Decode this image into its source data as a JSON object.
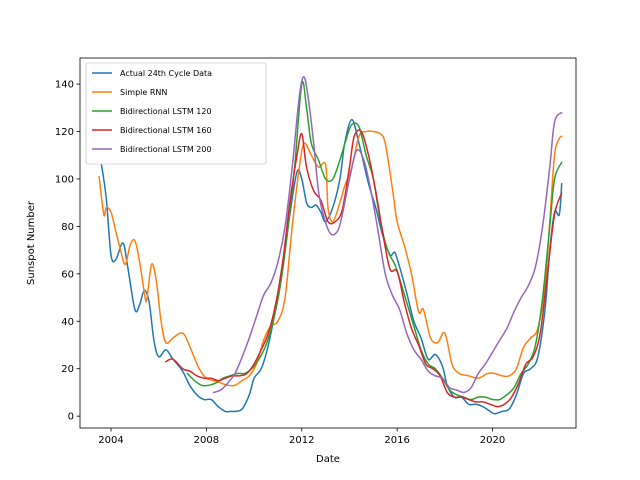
{
  "chart_data": {
    "type": "line",
    "title": "",
    "xlabel": "Date",
    "ylabel": "Sunspot Number",
    "xlim": [
      2002.7,
      2023.5
    ],
    "ylim": [
      -5,
      151
    ],
    "x_ticks": [
      2004,
      2008,
      2012,
      2016,
      2020
    ],
    "y_ticks": [
      0,
      20,
      40,
      60,
      80,
      100,
      120,
      140
    ],
    "grid": false,
    "legend_position": "top-left",
    "series": [
      {
        "name": "Actual 24th Cycle Data",
        "color": "#1f77b4",
        "points": [
          [
            2003.6,
            106
          ],
          [
            2003.8,
            92
          ],
          [
            2004.0,
            68
          ],
          [
            2004.2,
            66
          ],
          [
            2004.5,
            73
          ],
          [
            2004.7,
            63
          ],
          [
            2005.0,
            45
          ],
          [
            2005.2,
            47
          ],
          [
            2005.4,
            53
          ],
          [
            2005.6,
            48
          ],
          [
            2005.8,
            32
          ],
          [
            2006.0,
            25
          ],
          [
            2006.3,
            28
          ],
          [
            2006.6,
            24
          ],
          [
            2007.0,
            19
          ],
          [
            2007.3,
            13
          ],
          [
            2007.6,
            9
          ],
          [
            2007.9,
            7
          ],
          [
            2008.2,
            7
          ],
          [
            2008.5,
            4
          ],
          [
            2008.8,
            2
          ],
          [
            2009.0,
            2
          ],
          [
            2009.2,
            2
          ],
          [
            2009.5,
            3
          ],
          [
            2009.8,
            9
          ],
          [
            2010.0,
            16
          ],
          [
            2010.3,
            20
          ],
          [
            2010.6,
            30
          ],
          [
            2010.9,
            45
          ],
          [
            2011.2,
            62
          ],
          [
            2011.5,
            85
          ],
          [
            2011.8,
            103
          ],
          [
            2012.0,
            100
          ],
          [
            2012.2,
            90
          ],
          [
            2012.4,
            88
          ],
          [
            2012.6,
            89
          ],
          [
            2012.8,
            86
          ],
          [
            2013.0,
            82
          ],
          [
            2013.3,
            88
          ],
          [
            2013.6,
            100
          ],
          [
            2013.8,
            115
          ],
          [
            2014.1,
            125
          ],
          [
            2014.4,
            115
          ],
          [
            2014.8,
            98
          ],
          [
            2015.1,
            88
          ],
          [
            2015.4,
            76
          ],
          [
            2015.7,
            68
          ],
          [
            2015.9,
            69
          ],
          [
            2016.1,
            63
          ],
          [
            2016.4,
            52
          ],
          [
            2016.7,
            40
          ],
          [
            2017.0,
            33
          ],
          [
            2017.3,
            24
          ],
          [
            2017.6,
            26
          ],
          [
            2017.9,
            21
          ],
          [
            2018.1,
            13
          ],
          [
            2018.4,
            8
          ],
          [
            2018.7,
            8
          ],
          [
            2019.0,
            5
          ],
          [
            2019.3,
            5
          ],
          [
            2019.6,
            4
          ],
          [
            2019.9,
            2
          ],
          [
            2020.1,
            1
          ],
          [
            2020.4,
            2
          ],
          [
            2020.7,
            3
          ],
          [
            2021.0,
            9
          ],
          [
            2021.3,
            18
          ],
          [
            2021.6,
            20
          ],
          [
            2021.9,
            25
          ],
          [
            2022.2,
            45
          ],
          [
            2022.4,
            70
          ],
          [
            2022.6,
            86
          ],
          [
            2022.8,
            85
          ],
          [
            2022.9,
            98
          ]
        ]
      },
      {
        "name": "Simple RNN",
        "color": "#ff7f0e",
        "points": [
          [
            2003.5,
            101
          ],
          [
            2003.7,
            85
          ],
          [
            2003.8,
            88
          ],
          [
            2004.0,
            86
          ],
          [
            2004.2,
            78
          ],
          [
            2004.4,
            70
          ],
          [
            2004.6,
            64
          ],
          [
            2004.8,
            72
          ],
          [
            2005.0,
            74
          ],
          [
            2005.2,
            65
          ],
          [
            2005.4,
            52
          ],
          [
            2005.5,
            49
          ],
          [
            2005.7,
            64
          ],
          [
            2005.9,
            57
          ],
          [
            2006.1,
            40
          ],
          [
            2006.3,
            31
          ],
          [
            2006.6,
            33
          ],
          [
            2006.9,
            35
          ],
          [
            2007.1,
            34
          ],
          [
            2007.4,
            27
          ],
          [
            2007.7,
            20
          ],
          [
            2008.0,
            16
          ],
          [
            2008.3,
            15
          ],
          [
            2008.6,
            14
          ],
          [
            2008.9,
            13
          ],
          [
            2009.2,
            13
          ],
          [
            2009.5,
            15
          ],
          [
            2009.8,
            17
          ],
          [
            2010.1,
            22
          ],
          [
            2010.4,
            32
          ],
          [
            2010.7,
            38
          ],
          [
            2011.0,
            40
          ],
          [
            2011.3,
            50
          ],
          [
            2011.6,
            80
          ],
          [
            2011.9,
            105
          ],
          [
            2012.1,
            115
          ],
          [
            2012.4,
            110
          ],
          [
            2012.7,
            105
          ],
          [
            2013.0,
            106
          ],
          [
            2013.1,
            88
          ],
          [
            2013.3,
            82
          ],
          [
            2013.6,
            90
          ],
          [
            2013.8,
            97
          ],
          [
            2014.1,
            105
          ],
          [
            2014.4,
            118
          ],
          [
            2014.7,
            120
          ],
          [
            2015.0,
            120
          ],
          [
            2015.3,
            119
          ],
          [
            2015.5,
            115
          ],
          [
            2015.8,
            96
          ],
          [
            2016.0,
            82
          ],
          [
            2016.3,
            72
          ],
          [
            2016.6,
            60
          ],
          [
            2016.9,
            44
          ],
          [
            2017.1,
            45
          ],
          [
            2017.4,
            33
          ],
          [
            2017.7,
            31
          ],
          [
            2018.0,
            35
          ],
          [
            2018.3,
            22
          ],
          [
            2018.6,
            18
          ],
          [
            2019.0,
            17
          ],
          [
            2019.4,
            16
          ],
          [
            2019.8,
            18
          ],
          [
            2020.1,
            18
          ],
          [
            2020.4,
            17
          ],
          [
            2020.7,
            17
          ],
          [
            2021.0,
            20
          ],
          [
            2021.3,
            29
          ],
          [
            2021.6,
            33
          ],
          [
            2021.9,
            37
          ],
          [
            2022.2,
            55
          ],
          [
            2022.4,
            82
          ],
          [
            2022.6,
            110
          ],
          [
            2022.8,
            117
          ],
          [
            2022.9,
            118
          ]
        ]
      },
      {
        "name": "Bidirectional LSTM 120",
        "color": "#2ca02c",
        "points": [
          [
            2007.2,
            18
          ],
          [
            2007.5,
            15
          ],
          [
            2007.8,
            13
          ],
          [
            2008.1,
            13
          ],
          [
            2008.4,
            14
          ],
          [
            2008.7,
            16
          ],
          [
            2009.0,
            17
          ],
          [
            2009.3,
            18
          ],
          [
            2009.6,
            18
          ],
          [
            2009.9,
            20
          ],
          [
            2010.2,
            24
          ],
          [
            2010.5,
            30
          ],
          [
            2010.8,
            40
          ],
          [
            2011.1,
            55
          ],
          [
            2011.4,
            78
          ],
          [
            2011.7,
            105
          ],
          [
            2012.0,
            140
          ],
          [
            2012.2,
            130
          ],
          [
            2012.4,
            115
          ],
          [
            2012.7,
            108
          ],
          [
            2013.0,
            100
          ],
          [
            2013.3,
            100
          ],
          [
            2013.6,
            108
          ],
          [
            2013.9,
            118
          ],
          [
            2014.1,
            123
          ],
          [
            2014.4,
            122
          ],
          [
            2014.7,
            110
          ],
          [
            2015.0,
            100
          ],
          [
            2015.3,
            82
          ],
          [
            2015.6,
            70
          ],
          [
            2015.9,
            64
          ],
          [
            2016.1,
            58
          ],
          [
            2016.4,
            48
          ],
          [
            2016.7,
            38
          ],
          [
            2017.0,
            28
          ],
          [
            2017.3,
            22
          ],
          [
            2017.6,
            20
          ],
          [
            2017.9,
            16
          ],
          [
            2018.2,
            11
          ],
          [
            2018.5,
            9
          ],
          [
            2018.8,
            8
          ],
          [
            2019.1,
            7
          ],
          [
            2019.4,
            8
          ],
          [
            2019.7,
            8
          ],
          [
            2020.0,
            7
          ],
          [
            2020.3,
            7
          ],
          [
            2020.6,
            9
          ],
          [
            2020.9,
            12
          ],
          [
            2021.2,
            18
          ],
          [
            2021.5,
            22
          ],
          [
            2021.8,
            30
          ],
          [
            2022.1,
            50
          ],
          [
            2022.4,
            80
          ],
          [
            2022.6,
            100
          ],
          [
            2022.9,
            107
          ]
        ]
      },
      {
        "name": "Bidirectional LSTM 160",
        "color": "#d62728",
        "points": [
          [
            2006.3,
            23
          ],
          [
            2006.6,
            24
          ],
          [
            2007.0,
            20
          ],
          [
            2007.3,
            19
          ],
          [
            2007.6,
            17
          ],
          [
            2007.9,
            16
          ],
          [
            2008.2,
            16
          ],
          [
            2008.5,
            15
          ],
          [
            2008.8,
            16
          ],
          [
            2009.1,
            17
          ],
          [
            2009.4,
            17
          ],
          [
            2009.7,
            18
          ],
          [
            2010.0,
            22
          ],
          [
            2010.3,
            28
          ],
          [
            2010.6,
            35
          ],
          [
            2010.9,
            47
          ],
          [
            2011.2,
            65
          ],
          [
            2011.5,
            90
          ],
          [
            2011.8,
            110
          ],
          [
            2012.0,
            119
          ],
          [
            2012.2,
            105
          ],
          [
            2012.5,
            95
          ],
          [
            2012.8,
            91
          ],
          [
            2013.1,
            82
          ],
          [
            2013.4,
            82
          ],
          [
            2013.7,
            87
          ],
          [
            2014.0,
            105
          ],
          [
            2014.2,
            118
          ],
          [
            2014.5,
            120
          ],
          [
            2014.8,
            110
          ],
          [
            2015.1,
            95
          ],
          [
            2015.4,
            77
          ],
          [
            2015.7,
            62
          ],
          [
            2016.0,
            61
          ],
          [
            2016.3,
            48
          ],
          [
            2016.6,
            37
          ],
          [
            2016.9,
            30
          ],
          [
            2017.2,
            22
          ],
          [
            2017.5,
            20
          ],
          [
            2017.8,
            17
          ],
          [
            2018.1,
            10
          ],
          [
            2018.4,
            8
          ],
          [
            2018.7,
            8
          ],
          [
            2019.0,
            7
          ],
          [
            2019.3,
            6
          ],
          [
            2019.6,
            6
          ],
          [
            2019.9,
            5
          ],
          [
            2020.2,
            4
          ],
          [
            2020.5,
            5
          ],
          [
            2020.8,
            8
          ],
          [
            2021.1,
            14
          ],
          [
            2021.4,
            22
          ],
          [
            2021.7,
            25
          ],
          [
            2022.0,
            35
          ],
          [
            2022.3,
            60
          ],
          [
            2022.6,
            85
          ],
          [
            2022.9,
            94
          ]
        ]
      },
      {
        "name": "Bidirectional LSTM 200",
        "color": "#9467bd",
        "points": [
          [
            2008.3,
            10
          ],
          [
            2008.6,
            11
          ],
          [
            2008.9,
            14
          ],
          [
            2009.2,
            18
          ],
          [
            2009.5,
            25
          ],
          [
            2009.8,
            33
          ],
          [
            2010.1,
            42
          ],
          [
            2010.4,
            51
          ],
          [
            2010.7,
            56
          ],
          [
            2011.0,
            65
          ],
          [
            2011.3,
            80
          ],
          [
            2011.6,
            105
          ],
          [
            2011.9,
            135
          ],
          [
            2012.1,
            143
          ],
          [
            2012.3,
            132
          ],
          [
            2012.5,
            115
          ],
          [
            2012.7,
            95
          ],
          [
            2012.9,
            85
          ],
          [
            2013.2,
            77
          ],
          [
            2013.5,
            78
          ],
          [
            2013.7,
            85
          ],
          [
            2014.0,
            100
          ],
          [
            2014.3,
            112
          ],
          [
            2014.6,
            108
          ],
          [
            2014.9,
            95
          ],
          [
            2015.2,
            78
          ],
          [
            2015.5,
            60
          ],
          [
            2015.8,
            51
          ],
          [
            2016.1,
            45
          ],
          [
            2016.4,
            35
          ],
          [
            2016.7,
            28
          ],
          [
            2017.0,
            24
          ],
          [
            2017.3,
            19
          ],
          [
            2017.6,
            17
          ],
          [
            2017.9,
            16
          ],
          [
            2018.2,
            12
          ],
          [
            2018.5,
            11
          ],
          [
            2018.8,
            10
          ],
          [
            2019.1,
            12
          ],
          [
            2019.4,
            18
          ],
          [
            2019.7,
            22
          ],
          [
            2020.0,
            27
          ],
          [
            2020.3,
            32
          ],
          [
            2020.6,
            37
          ],
          [
            2020.9,
            44
          ],
          [
            2021.2,
            50
          ],
          [
            2021.5,
            55
          ],
          [
            2021.8,
            63
          ],
          [
            2022.1,
            80
          ],
          [
            2022.4,
            105
          ],
          [
            2022.6,
            124
          ],
          [
            2022.9,
            128
          ]
        ]
      }
    ]
  }
}
